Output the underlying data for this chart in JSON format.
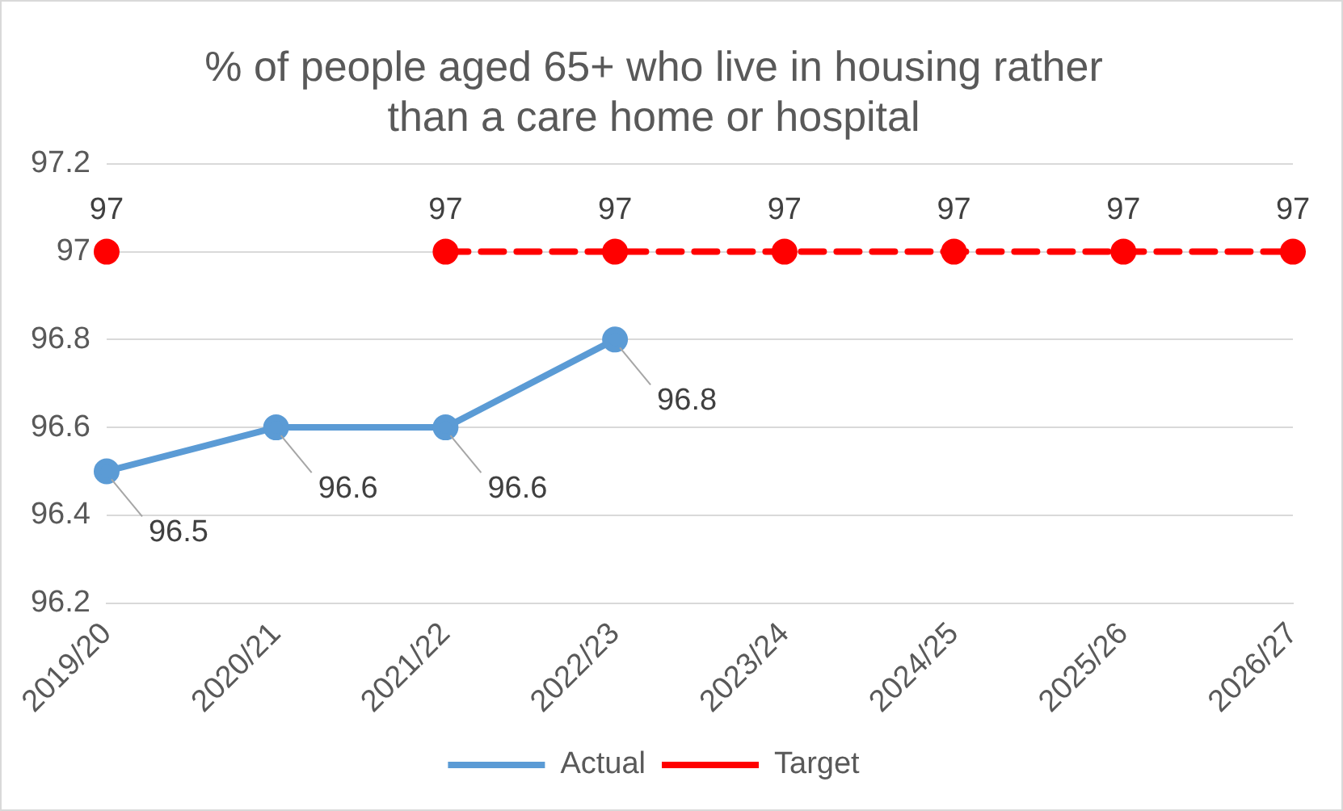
{
  "chart_data": {
    "type": "line",
    "title": "% of people aged 65+ who live in housing rather than a care home or hospital",
    "categories": [
      "2019/20",
      "2020/21",
      "2021/22",
      "2022/23",
      "2023/24",
      "2024/25",
      "2025/26",
      "2026/27"
    ],
    "series": [
      {
        "name": "Actual",
        "color": "#5b9bd5",
        "line_style": "solid",
        "values": [
          96.5,
          96.6,
          96.6,
          96.8,
          null,
          null,
          null,
          null
        ]
      },
      {
        "name": "Target",
        "color": "#ff0000",
        "line_style": "dashed",
        "values": [
          97,
          null,
          97,
          97,
          97,
          97,
          97,
          97
        ]
      }
    ],
    "ylim": [
      96.2,
      97.2
    ],
    "yticks": [
      96.2,
      96.4,
      96.6,
      96.8,
      97,
      97.2
    ],
    "grid": "y",
    "legend": "bottom",
    "marker": "circle",
    "data_labels": true
  }
}
